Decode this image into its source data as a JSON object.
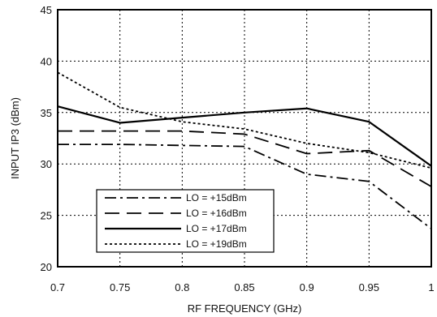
{
  "chart_data": {
    "type": "line",
    "xlabel": "RF FREQUENCY (GHz)",
    "ylabel": "INPUT IP3 (dBm)",
    "xlim": [
      0.7,
      1.0
    ],
    "ylim": [
      20,
      45
    ],
    "xticks": [
      0.7,
      0.75,
      0.8,
      0.85,
      0.9,
      0.95,
      1
    ],
    "xtick_labels": [
      "0.7",
      "0.75",
      "0.8",
      "0.85",
      "0.9",
      "0.95",
      "1"
    ],
    "yticks": [
      20,
      25,
      30,
      35,
      40,
      45
    ],
    "ytick_labels": [
      "20",
      "25",
      "30",
      "35",
      "40",
      "45"
    ],
    "grid": true,
    "legend_position": "lower-left",
    "series": [
      {
        "name": "LO = +15dBm",
        "style": "dash-dot",
        "x": [
          0.7,
          0.75,
          0.8,
          0.85,
          0.9,
          0.95,
          1.0
        ],
        "y": [
          31.9,
          31.9,
          31.8,
          31.7,
          29.0,
          28.3,
          23.7
        ]
      },
      {
        "name": "LO = +16dBm",
        "style": "long-dash",
        "x": [
          0.7,
          0.75,
          0.8,
          0.85,
          0.9,
          0.95,
          1.0
        ],
        "y": [
          33.2,
          33.2,
          33.2,
          32.9,
          31.0,
          31.3,
          27.8
        ]
      },
      {
        "name": "LO = +17dBm",
        "style": "solid",
        "x": [
          0.7,
          0.75,
          0.8,
          0.85,
          0.9,
          0.95,
          1.0
        ],
        "y": [
          35.6,
          34.0,
          34.5,
          35.0,
          35.4,
          34.1,
          29.8
        ]
      },
      {
        "name": "LO = +19dBm",
        "style": "dotted",
        "x": [
          0.7,
          0.75,
          0.8,
          0.85,
          0.9,
          0.95,
          1.0
        ],
        "y": [
          38.9,
          35.5,
          34.1,
          33.4,
          32.0,
          31.1,
          29.6
        ]
      }
    ]
  }
}
